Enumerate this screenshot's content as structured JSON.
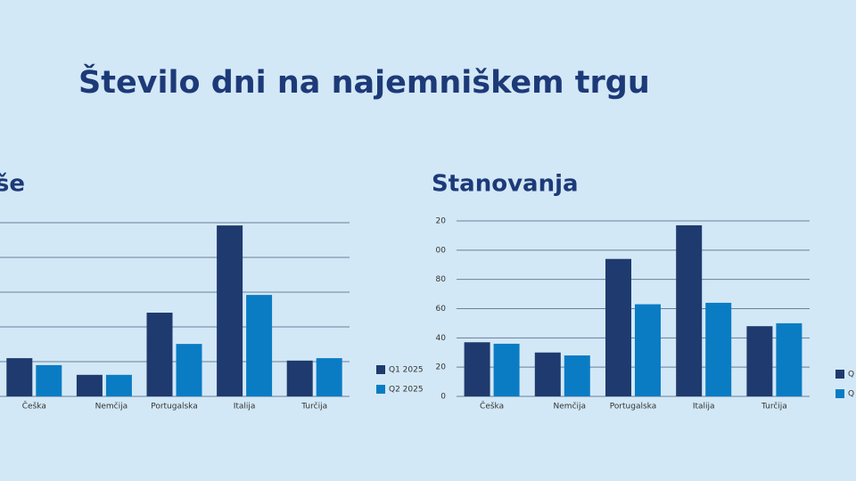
{
  "title": "Število dni na najemniškem trgu",
  "chart_data": [
    {
      "type": "bar",
      "title": "iše",
      "categories": [
        "Češka",
        "Nemčija",
        "Portugalska",
        "Italija",
        "Turčija"
      ],
      "series": [
        {
          "name": "Q1 2025",
          "color": "#1f3a6e",
          "values": [
            11,
            6.2,
            24.1,
            49.2,
            10.3
          ]
        },
        {
          "name": "Q2 2025",
          "color": "#0a7cc4",
          "values": [
            9,
            6.2,
            15.1,
            29.2,
            11
          ]
        }
      ],
      "ylim": [
        0,
        50
      ],
      "yticks": [
        0,
        10,
        20,
        30,
        40,
        50
      ],
      "tick_labels": false,
      "grid": true
    },
    {
      "type": "bar",
      "title": "Stanovanja",
      "categories": [
        "Češka",
        "Nemčija",
        "Portugalska",
        "Italija",
        "Turčija"
      ],
      "series": [
        {
          "name": "Q",
          "color": "#1f3a6e",
          "values": [
            37,
            30,
            94,
            117,
            48
          ]
        },
        {
          "name": "Q",
          "color": "#0a7cc4",
          "values": [
            36,
            28,
            63,
            64,
            50
          ]
        }
      ],
      "ylim": [
        0,
        120
      ],
      "yticks": [
        0,
        20,
        40,
        60,
        80,
        {
          "value": 100,
          "label": "00"
        },
        {
          "value": 120,
          "label": "20"
        }
      ],
      "tick_labels": true,
      "grid": true
    }
  ]
}
